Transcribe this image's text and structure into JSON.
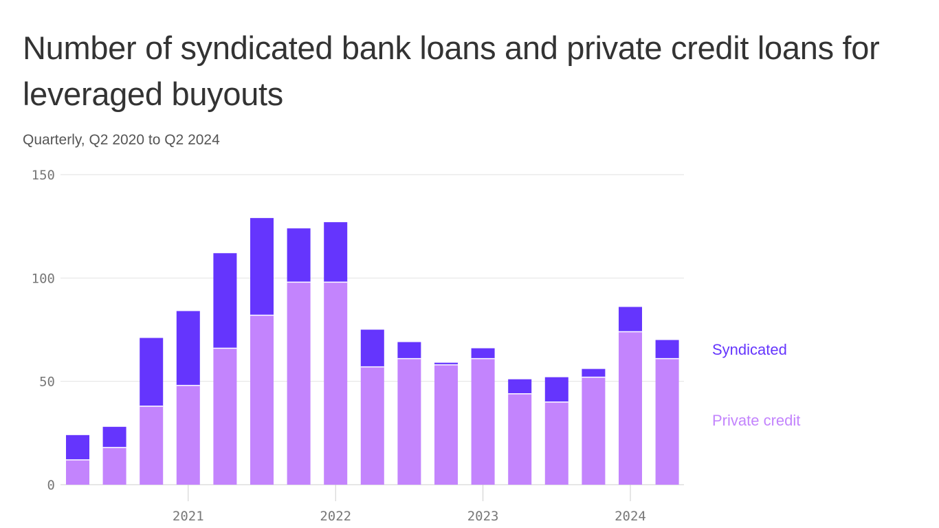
{
  "title": "Number of syndicated bank loans and private credit loans for leveraged buyouts",
  "subtitle": "Quarterly, Q2 2020 to Q2 2024",
  "chart_data": {
    "type": "bar",
    "stacked": true,
    "categories": [
      "Q2 2020",
      "Q3 2020",
      "Q4 2020",
      "Q1 2021",
      "Q2 2021",
      "Q3 2021",
      "Q4 2021",
      "Q1 2022",
      "Q2 2022",
      "Q3 2022",
      "Q4 2022",
      "Q1 2023",
      "Q2 2023",
      "Q3 2023",
      "Q4 2023",
      "Q1 2024",
      "Q2 2024"
    ],
    "series": [
      {
        "name": "Private credit",
        "color": "#c384fd",
        "values": [
          12,
          18,
          38,
          48,
          66,
          82,
          98,
          98,
          57,
          61,
          58,
          61,
          44,
          40,
          52,
          74,
          61
        ]
      },
      {
        "name": "Syndicated",
        "color": "#6535fd",
        "values": [
          12,
          10,
          33,
          36,
          46,
          47,
          26,
          29,
          18,
          8,
          1,
          5,
          7,
          12,
          4,
          12,
          9
        ]
      }
    ],
    "ylim": [
      0,
      150
    ],
    "yticks": [
      "0",
      "50",
      "100",
      "150"
    ],
    "xticks": [
      {
        "label": "2021",
        "category": "Q1 2021"
      },
      {
        "label": "2022",
        "category": "Q1 2022"
      },
      {
        "label": "2023",
        "category": "Q1 2023"
      },
      {
        "label": "2024",
        "category": "Q1 2024"
      }
    ],
    "grid": true,
    "legend": "right"
  }
}
